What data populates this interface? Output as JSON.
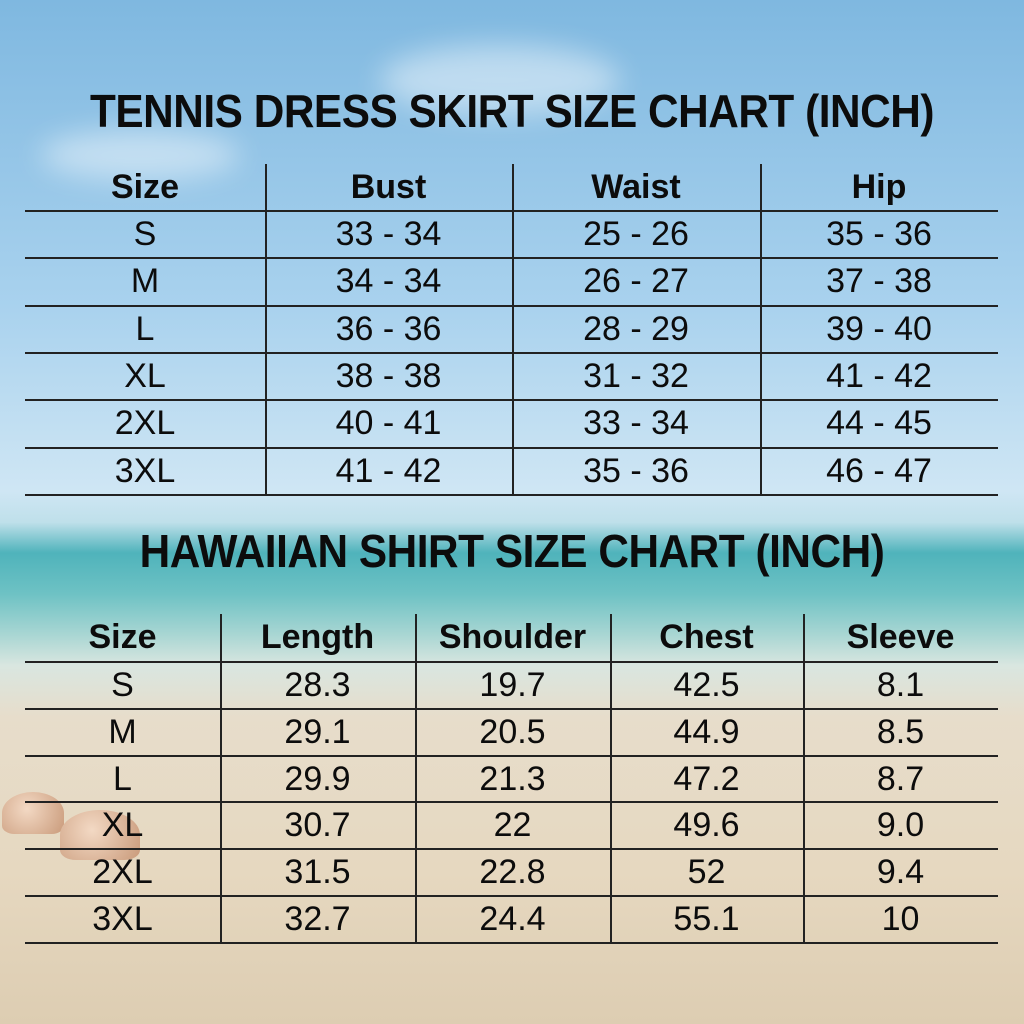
{
  "background_colors": {
    "sky": "#8ec3e6",
    "sea": "#4fb3bb",
    "sand": "#e6d8c0",
    "text": "#0c0c0c"
  },
  "tennis": {
    "title": "TENNIS DRESS SKIRT SIZE CHART (INCH)",
    "headers": [
      "Size",
      "Bust",
      "Waist",
      "Hip"
    ],
    "rows": [
      [
        "S",
        "33 - 34",
        "25 - 26",
        "35 - 36"
      ],
      [
        "M",
        "34 - 34",
        "26 - 27",
        "37 - 38"
      ],
      [
        "L",
        "36 - 36",
        "28 - 29",
        "39 - 40"
      ],
      [
        "XL",
        "38 - 38",
        "31 - 32",
        "41 - 42"
      ],
      [
        "2XL",
        "40 - 41",
        "33 - 34",
        "44 - 45"
      ],
      [
        "3XL",
        "41 - 42",
        "35 - 36",
        "46 - 47"
      ]
    ]
  },
  "hawaiian": {
    "title": "HAWAIIAN SHIRT SIZE CHART (INCH)",
    "headers": [
      "Size",
      "Length",
      "Shoulder",
      "Chest",
      "Sleeve"
    ],
    "rows": [
      [
        "S",
        "28.3",
        "19.7",
        "42.5",
        "8.1"
      ],
      [
        "M",
        "29.1",
        "20.5",
        "44.9",
        "8.5"
      ],
      [
        "L",
        "29.9",
        "21.3",
        "47.2",
        "8.7"
      ],
      [
        "XL",
        "30.7",
        "22",
        "49.6",
        "9.0"
      ],
      [
        "2XL",
        "31.5",
        "22.8",
        "52",
        "9.4"
      ],
      [
        "3XL",
        "32.7",
        "24.4",
        "55.1",
        "10"
      ]
    ]
  }
}
